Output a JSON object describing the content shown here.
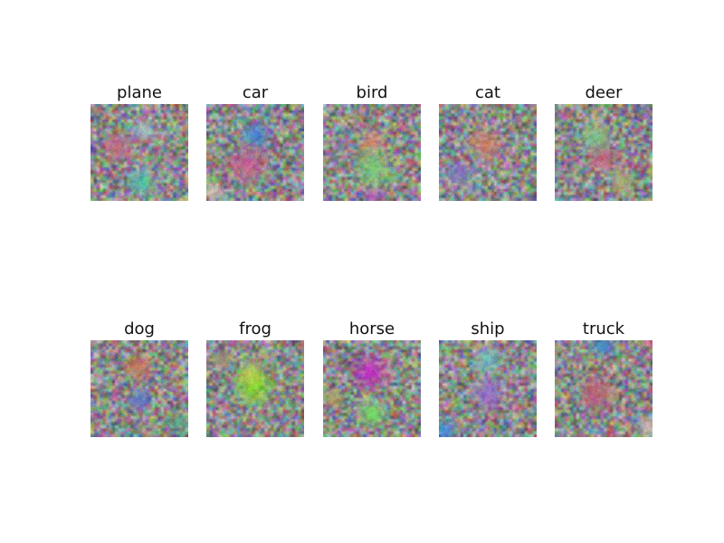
{
  "figure": {
    "panels": [
      {
        "label": "plane",
        "blobs": [
          {
            "color": "#d06a86",
            "fx": 0.28,
            "fy": 0.44,
            "r": 0.2
          },
          {
            "color": "#3fd0ae",
            "fx": 0.52,
            "fy": 0.82,
            "r": 0.18
          },
          {
            "color": "#9fd0cf",
            "fx": 0.55,
            "fy": 0.28,
            "r": 0.14
          }
        ]
      },
      {
        "label": "car",
        "blobs": [
          {
            "color": "#2f7ee8",
            "fx": 0.5,
            "fy": 0.32,
            "r": 0.18
          },
          {
            "color": "#d6558f",
            "fx": 0.42,
            "fy": 0.62,
            "r": 0.24
          },
          {
            "color": "#e7d1bf",
            "fx": 0.06,
            "fy": 0.9,
            "r": 0.14
          }
        ]
      },
      {
        "label": "bird",
        "blobs": [
          {
            "color": "#e08b6a",
            "fx": 0.5,
            "fy": 0.38,
            "r": 0.16
          },
          {
            "color": "#77d66d",
            "fx": 0.5,
            "fy": 0.66,
            "r": 0.26
          },
          {
            "color": "#c24cc0",
            "fx": 0.5,
            "fy": 0.95,
            "r": 0.12
          }
        ]
      },
      {
        "label": "cat",
        "blobs": [
          {
            "color": "#d87a60",
            "fx": 0.48,
            "fy": 0.42,
            "r": 0.22
          },
          {
            "color": "#7a6fcf",
            "fx": 0.22,
            "fy": 0.72,
            "r": 0.18
          },
          {
            "color": "#5a3a8a",
            "fx": 0.98,
            "fy": 0.98,
            "r": 0.1
          }
        ]
      },
      {
        "label": "deer",
        "blobs": [
          {
            "color": "#cc5a7a",
            "fx": 0.5,
            "fy": 0.55,
            "r": 0.2
          },
          {
            "color": "#7acf86",
            "fx": 0.42,
            "fy": 0.35,
            "r": 0.2
          },
          {
            "color": "#b0b070",
            "fx": 0.7,
            "fy": 0.8,
            "r": 0.18
          }
        ]
      },
      {
        "label": "dog",
        "blobs": [
          {
            "color": "#d8704e",
            "fx": 0.48,
            "fy": 0.28,
            "r": 0.18
          },
          {
            "color": "#5a6ed0",
            "fx": 0.5,
            "fy": 0.62,
            "r": 0.16
          },
          {
            "color": "#4fae8e",
            "fx": 0.9,
            "fy": 0.85,
            "r": 0.12
          }
        ]
      },
      {
        "label": "frog",
        "blobs": [
          {
            "color": "#7fe81a",
            "fx": 0.48,
            "fy": 0.48,
            "r": 0.26
          },
          {
            "color": "#c8d84a",
            "fx": 0.45,
            "fy": 0.35,
            "r": 0.16
          },
          {
            "color": "#9c9a7a",
            "fx": 0.15,
            "fy": 0.2,
            "r": 0.14
          }
        ]
      },
      {
        "label": "horse",
        "blobs": [
          {
            "color": "#d21ec8",
            "fx": 0.48,
            "fy": 0.33,
            "r": 0.24
          },
          {
            "color": "#75e85a",
            "fx": 0.5,
            "fy": 0.75,
            "r": 0.2
          },
          {
            "color": "#b8a060",
            "fx": 0.1,
            "fy": 0.6,
            "r": 0.14
          }
        ]
      },
      {
        "label": "ship",
        "blobs": [
          {
            "color": "#2f8ee8",
            "fx": 0.05,
            "fy": 0.92,
            "r": 0.16
          },
          {
            "color": "#9a6fd8",
            "fx": 0.5,
            "fy": 0.55,
            "r": 0.22
          },
          {
            "color": "#6ec8c8",
            "fx": 0.5,
            "fy": 0.2,
            "r": 0.2
          }
        ]
      },
      {
        "label": "truck",
        "blobs": [
          {
            "color": "#3a8ad8",
            "fx": 0.5,
            "fy": 0.05,
            "r": 0.18
          },
          {
            "color": "#c85a72",
            "fx": 0.42,
            "fy": 0.55,
            "r": 0.24
          },
          {
            "color": "#d8c8b8",
            "fx": 0.95,
            "fy": 0.9,
            "r": 0.14
          }
        ]
      }
    ]
  }
}
